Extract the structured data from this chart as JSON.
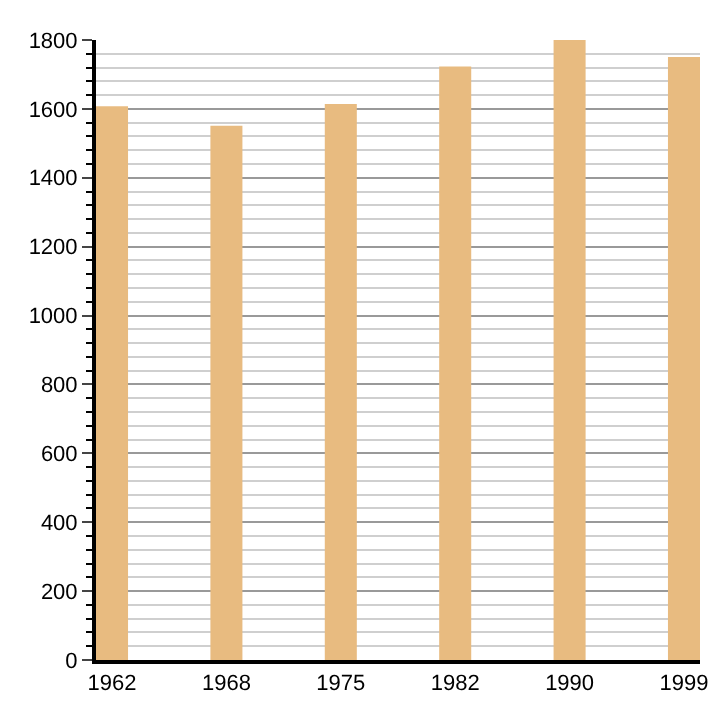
{
  "chart_data": {
    "type": "bar",
    "categories": [
      "1962",
      "1968",
      "1975",
      "1982",
      "1990",
      "1999"
    ],
    "values": [
      1608,
      1551,
      1614,
      1723,
      1800,
      1751
    ],
    "color": "#e8bb80",
    "ylim": [
      0,
      1800
    ],
    "yticks": [
      0,
      200,
      400,
      600,
      800,
      1000,
      1200,
      1400,
      1600,
      1800
    ],
    "grid": "y"
  }
}
